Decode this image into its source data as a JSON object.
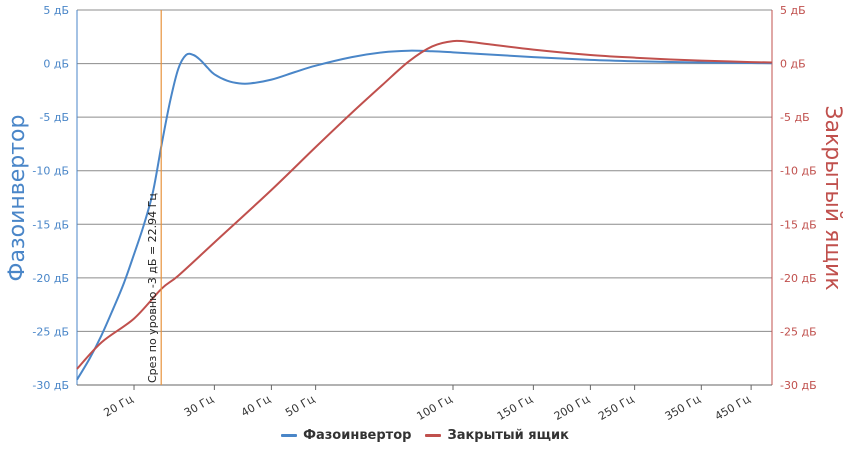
{
  "chart_data": {
    "type": "line",
    "x_scale": "log",
    "xlim": [
      15,
      500
    ],
    "x_ticks": [
      {
        "value": 20,
        "label": "20 Гц"
      },
      {
        "value": 30,
        "label": "30 Гц"
      },
      {
        "value": 40,
        "label": "40 Гц"
      },
      {
        "value": 50,
        "label": "50 Гц"
      },
      {
        "value": 100,
        "label": "100 Гц"
      },
      {
        "value": 150,
        "label": "150 Гц"
      },
      {
        "value": 200,
        "label": "200 Гц"
      },
      {
        "value": 250,
        "label": "250 Гц"
      },
      {
        "value": 350,
        "label": "350 Гц"
      },
      {
        "value": 450,
        "label": "450 Гц"
      }
    ],
    "y_left": {
      "title": "Фазоинвертор",
      "color": "#4a86c8",
      "ylim": [
        -30,
        5
      ],
      "ticks": [
        {
          "value": 5,
          "label": "5 дБ"
        },
        {
          "value": 0,
          "label": "0 дБ"
        },
        {
          "value": -5,
          "label": "-5 дБ"
        },
        {
          "value": -10,
          "label": "-10 дБ"
        },
        {
          "value": -15,
          "label": "-15 дБ"
        },
        {
          "value": -20,
          "label": "-20 дБ"
        },
        {
          "value": -25,
          "label": "-25 дБ"
        },
        {
          "value": -30,
          "label": "-30 дБ"
        }
      ]
    },
    "y_right": {
      "title": "Закрытый ящик",
      "color": "#c0504d",
      "ylim": [
        -30,
        5
      ],
      "ticks": [
        {
          "value": 5,
          "label": "5 дБ"
        },
        {
          "value": 0,
          "label": "0 дБ"
        },
        {
          "value": -5,
          "label": "-5 дБ"
        },
        {
          "value": -10,
          "label": "-10 дБ"
        },
        {
          "value": -15,
          "label": "-15 дБ"
        },
        {
          "value": -20,
          "label": "-20 дБ"
        },
        {
          "value": -25,
          "label": "-25 дБ"
        },
        {
          "value": -30,
          "label": "-30 дБ"
        }
      ]
    },
    "series": [
      {
        "name": "Фазоинвертор",
        "color": "#4a86c8",
        "axis": "left",
        "points": [
          [
            15,
            -29.5
          ],
          [
            16,
            -27.5
          ],
          [
            17,
            -25.3
          ],
          [
            18,
            -22.9
          ],
          [
            19,
            -20.5
          ],
          [
            20,
            -17.8
          ],
          [
            21,
            -15.1
          ],
          [
            22,
            -12.0
          ],
          [
            23,
            -7.5
          ],
          [
            24,
            -3.5
          ],
          [
            25,
            -0.5
          ],
          [
            26,
            0.8
          ],
          [
            27,
            0.8
          ],
          [
            28,
            0.3
          ],
          [
            29,
            -0.4
          ],
          [
            30,
            -1.0
          ],
          [
            32,
            -1.6
          ],
          [
            34,
            -1.85
          ],
          [
            36,
            -1.85
          ],
          [
            40,
            -1.5
          ],
          [
            45,
            -0.8
          ],
          [
            50,
            -0.2
          ],
          [
            60,
            0.6
          ],
          [
            70,
            1.05
          ],
          [
            80,
            1.2
          ],
          [
            90,
            1.15
          ],
          [
            100,
            1.05
          ],
          [
            120,
            0.85
          ],
          [
            150,
            0.6
          ],
          [
            200,
            0.35
          ],
          [
            250,
            0.22
          ],
          [
            300,
            0.15
          ],
          [
            350,
            0.1
          ],
          [
            400,
            0.07
          ],
          [
            450,
            0.05
          ],
          [
            500,
            0.03
          ]
        ]
      },
      {
        "name": "Закрытый ящик",
        "color": "#c0504d",
        "axis": "right",
        "points": [
          [
            15,
            -28.5
          ],
          [
            17,
            -26.0
          ],
          [
            20,
            -23.8
          ],
          [
            23,
            -21.0
          ],
          [
            25,
            -19.8
          ],
          [
            30,
            -16.7
          ],
          [
            40,
            -11.8
          ],
          [
            50,
            -7.8
          ],
          [
            60,
            -4.6
          ],
          [
            70,
            -2.0
          ],
          [
            80,
            0.2
          ],
          [
            90,
            1.6
          ],
          [
            100,
            2.1
          ],
          [
            110,
            2.0
          ],
          [
            120,
            1.8
          ],
          [
            150,
            1.3
          ],
          [
            200,
            0.8
          ],
          [
            250,
            0.55
          ],
          [
            300,
            0.38
          ],
          [
            350,
            0.28
          ],
          [
            400,
            0.2
          ],
          [
            450,
            0.14
          ],
          [
            500,
            0.1
          ]
        ]
      }
    ],
    "marker": {
      "x": 22.94,
      "color": "#e8923c",
      "label": "Срез по уровню -3 дБ = 22.94 Гц"
    },
    "grid": true,
    "legend_position": "bottom"
  },
  "legend": {
    "items": [
      {
        "label": "Фазоинвертор",
        "color": "#4a86c8"
      },
      {
        "label": "Закрытый ящик",
        "color": "#c0504d"
      }
    ]
  }
}
